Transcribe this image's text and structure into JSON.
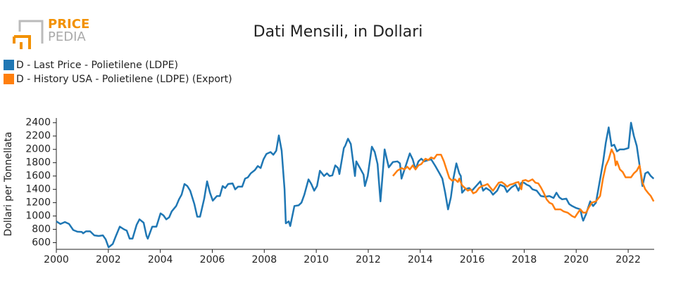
{
  "logo": {
    "line1": "PRICE",
    "line2": "PEDIA"
  },
  "chart_data": {
    "type": "line",
    "title": "Dati Mensili, in Dollari",
    "ylabel": "Dollari per Tonnellata",
    "xlim": [
      2000,
      2023
    ],
    "xticks": [
      2000,
      2002,
      2004,
      2006,
      2008,
      2010,
      2012,
      2014,
      2016,
      2018,
      2020,
      2022
    ],
    "ylim": [
      500,
      2450
    ],
    "yticks": [
      600,
      800,
      1000,
      1200,
      1400,
      1600,
      1800,
      2000,
      2200,
      2400
    ],
    "grid": false,
    "legend": "top-left",
    "series": [
      {
        "name": "D - Last Price - Polietilene (LDPE)",
        "color": "#1f77b4",
        "x": [
          2000,
          2000.16,
          2000.33,
          2000.49,
          2000.65,
          2000.81,
          2000.98,
          2001.03,
          2001.14,
          2001.3,
          2001.46,
          2001.63,
          2001.79,
          2001.9,
          2002.01,
          2002.17,
          2002.28,
          2002.44,
          2002.6,
          2002.71,
          2002.82,
          2002.93,
          2003.09,
          2003.2,
          2003.36,
          2003.47,
          2003.52,
          2003.69,
          2003.85,
          2004.01,
          2004.12,
          2004.23,
          2004.34,
          2004.44,
          2004.61,
          2004.72,
          2004.82,
          2004.93,
          2005.04,
          2005.15,
          2005.31,
          2005.42,
          2005.53,
          2005.69,
          2005.8,
          2005.91,
          2006.02,
          2006.18,
          2006.29,
          2006.4,
          2006.5,
          2006.61,
          2006.78,
          2006.88,
          2006.99,
          2007.15,
          2007.26,
          2007.37,
          2007.48,
          2007.64,
          2007.75,
          2007.86,
          2007.97,
          2008.08,
          2008.24,
          2008.35,
          2008.46,
          2008.56,
          2008.67,
          2008.78,
          2008.83,
          2008.94,
          2009.0,
          2009.16,
          2009.32,
          2009.43,
          2009.54,
          2009.7,
          2009.81,
          2009.92,
          2010.03,
          2010.14,
          2010.3,
          2010.41,
          2010.51,
          2010.62,
          2010.73,
          2010.84,
          2010.89,
          2011.06,
          2011.11,
          2011.22,
          2011.33,
          2011.49,
          2011.54,
          2011.71,
          2011.82,
          2011.87,
          2011.98,
          2012.14,
          2012.25,
          2012.36,
          2012.47,
          2012.63,
          2012.79,
          2012.95,
          2013.12,
          2013.22,
          2013.28,
          2013.44,
          2013.6,
          2013.71,
          2013.82,
          2013.93,
          2014.04,
          2014.15,
          2014.31,
          2014.42,
          2014.58,
          2014.74,
          2014.85,
          2014.96,
          2015.07,
          2015.18,
          2015.28,
          2015.39,
          2015.5,
          2015.56,
          2015.61,
          2015.72,
          2015.88,
          2015.99,
          2016.15,
          2016.31,
          2016.42,
          2016.53,
          2016.69,
          2016.8,
          2016.96,
          2017.07,
          2017.24,
          2017.34,
          2017.51,
          2017.67,
          2017.78,
          2017.89,
          2017.99,
          2018.1,
          2018.21,
          2018.32,
          2018.48,
          2018.64,
          2018.81,
          2018.97,
          2019.13,
          2019.24,
          2019.35,
          2019.46,
          2019.62,
          2019.73,
          2019.84,
          2020.0,
          2020.16,
          2020.22,
          2020.27,
          2020.38,
          2020.54,
          2020.65,
          2020.76,
          2020.92,
          2021.03,
          2021.14,
          2021.25,
          2021.36,
          2021.46,
          2021.57,
          2021.68,
          2021.84,
          2022.01,
          2022.11,
          2022.22,
          2022.33,
          2022.44,
          2022.55,
          2022.66,
          2022.76,
          2022.87,
          2022.98
        ],
        "values": [
          920,
          880,
          910,
          880,
          790,
          765,
          760,
          740,
          770,
          770,
          710,
          700,
          710,
          650,
          530,
          580,
          690,
          840,
          800,
          780,
          660,
          660,
          870,
          950,
          900,
          700,
          660,
          840,
          840,
          1040,
          1010,
          950,
          980,
          1070,
          1150,
          1250,
          1320,
          1480,
          1450,
          1380,
          1180,
          990,
          990,
          1260,
          1520,
          1350,
          1230,
          1300,
          1300,
          1450,
          1420,
          1480,
          1490,
          1400,
          1440,
          1440,
          1560,
          1580,
          1640,
          1690,
          1750,
          1720,
          1850,
          1930,
          1960,
          1920,
          1980,
          2210,
          1980,
          1400,
          890,
          920,
          850,
          1150,
          1160,
          1200,
          1320,
          1550,
          1480,
          1380,
          1450,
          1680,
          1600,
          1640,
          1600,
          1610,
          1760,
          1720,
          1630,
          2020,
          2050,
          2160,
          2080,
          1600,
          1820,
          1700,
          1620,
          1450,
          1600,
          2040,
          1960,
          1780,
          1220,
          2000,
          1730,
          1810,
          1820,
          1790,
          1560,
          1750,
          1940,
          1850,
          1700,
          1820,
          1860,
          1820,
          1840,
          1850,
          1750,
          1640,
          1560,
          1350,
          1100,
          1280,
          1570,
          1790,
          1640,
          1600,
          1350,
          1400,
          1420,
          1380,
          1450,
          1520,
          1380,
          1420,
          1380,
          1320,
          1380,
          1470,
          1440,
          1360,
          1430,
          1470,
          1380,
          1500,
          1500,
          1470,
          1450,
          1400,
          1380,
          1300,
          1290,
          1300,
          1270,
          1350,
          1280,
          1250,
          1260,
          1180,
          1150,
          1120,
          1100,
          990,
          930,
          1030,
          1220,
          1150,
          1200,
          1550,
          1800,
          2100,
          2330,
          2050,
          2070,
          1970,
          2000,
          2000,
          2020,
          2400,
          2200,
          2050,
          1760,
          1450,
          1640,
          1660,
          1600,
          1560
        ]
      },
      {
        "name": "D - History USA - Polietilene (LDPE) (Export)",
        "color": "#ff7f0e",
        "x": [
          2012.95,
          2013.12,
          2013.28,
          2013.39,
          2013.5,
          2013.6,
          2013.71,
          2013.82,
          2013.93,
          2014.04,
          2014.2,
          2014.31,
          2014.42,
          2014.53,
          2014.64,
          2014.8,
          2014.91,
          2015.01,
          2015.12,
          2015.23,
          2015.34,
          2015.45,
          2015.5,
          2015.61,
          2015.72,
          2015.83,
          2015.94,
          2016.04,
          2016.15,
          2016.26,
          2016.37,
          2016.48,
          2016.59,
          2016.69,
          2016.8,
          2016.91,
          2017.02,
          2017.13,
          2017.24,
          2017.34,
          2017.45,
          2017.56,
          2017.67,
          2017.78,
          2017.89,
          2017.94,
          2018.05,
          2018.16,
          2018.27,
          2018.32,
          2018.43,
          2018.54,
          2018.64,
          2018.75,
          2018.86,
          2018.97,
          2019.08,
          2019.19,
          2019.3,
          2019.4,
          2019.51,
          2019.67,
          2019.84,
          2019.95,
          2020.05,
          2020.16,
          2020.27,
          2020.38,
          2020.49,
          2020.6,
          2020.76,
          2020.92,
          2021.03,
          2021.14,
          2021.25,
          2021.36,
          2021.46,
          2021.52,
          2021.57,
          2021.68,
          2021.79,
          2021.9,
          2022.01,
          2022.11,
          2022.22,
          2022.33,
          2022.44,
          2022.55,
          2022.66,
          2022.76,
          2022.87,
          2022.98
        ],
        "values": [
          1600,
          1680,
          1720,
          1700,
          1740,
          1700,
          1760,
          1700,
          1760,
          1780,
          1860,
          1840,
          1880,
          1860,
          1920,
          1920,
          1820,
          1700,
          1570,
          1530,
          1550,
          1510,
          1560,
          1460,
          1420,
          1380,
          1400,
          1340,
          1360,
          1420,
          1450,
          1460,
          1480,
          1430,
          1380,
          1440,
          1500,
          1510,
          1480,
          1440,
          1470,
          1480,
          1500,
          1510,
          1400,
          1530,
          1540,
          1520,
          1540,
          1550,
          1500,
          1490,
          1430,
          1350,
          1250,
          1200,
          1180,
          1100,
          1100,
          1100,
          1070,
          1050,
          1000,
          980,
          1040,
          1100,
          1050,
          1050,
          1130,
          1200,
          1220,
          1300,
          1560,
          1750,
          1850,
          2000,
          1920,
          1760,
          1820,
          1700,
          1660,
          1580,
          1580,
          1580,
          1640,
          1680,
          1760,
          1500,
          1400,
          1350,
          1300,
          1220
        ]
      }
    ]
  }
}
